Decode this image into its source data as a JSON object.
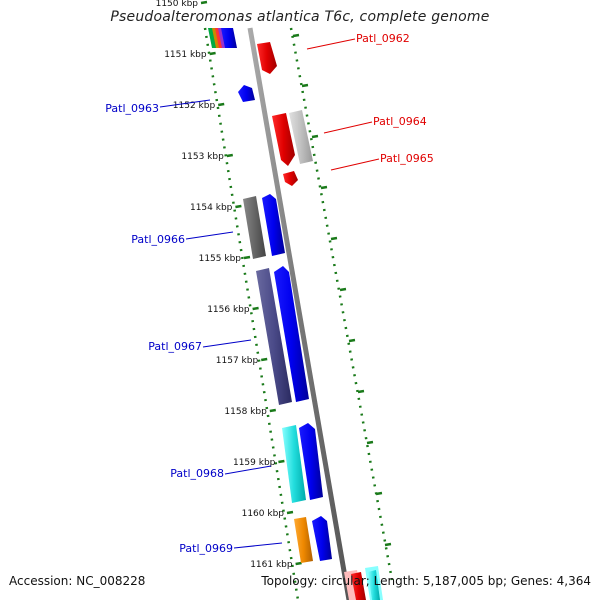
{
  "title": "Pseudoalteromonas atlantica T6c, complete genome",
  "footer": {
    "accession": "Accession: NC_008228",
    "summary": "Topology: circular; Length: 5,187,005 bp; Genes: 4,364"
  },
  "ticks": [
    "1150 kbp",
    "1151 kbp",
    "1152 kbp",
    "1153 kbp",
    "1154 kbp",
    "1155 kbp",
    "1156 kbp",
    "1157 kbp",
    "1158 kbp",
    "1159 kbp",
    "1160 kbp",
    "1161 kbp"
  ],
  "gene_labels": [
    {
      "name": "Patl_0962",
      "color": "#e00000"
    },
    {
      "name": "Patl_0963",
      "color": "#0000c8"
    },
    {
      "name": "Patl_0964",
      "color": "#e00000"
    },
    {
      "name": "Patl_0965",
      "color": "#e00000"
    },
    {
      "name": "Patl_0966",
      "color": "#0000c8"
    },
    {
      "name": "Patl_0967",
      "color": "#0000c8"
    },
    {
      "name": "Patl_0968",
      "color": "#0000c8"
    },
    {
      "name": "Patl_0969",
      "color": "#0000c8"
    }
  ],
  "colors": {
    "forward_cds": "#e00000",
    "reverse_cds": "#0000ee",
    "backbone": "#888888",
    "ruler": "#1a7a1a"
  }
}
